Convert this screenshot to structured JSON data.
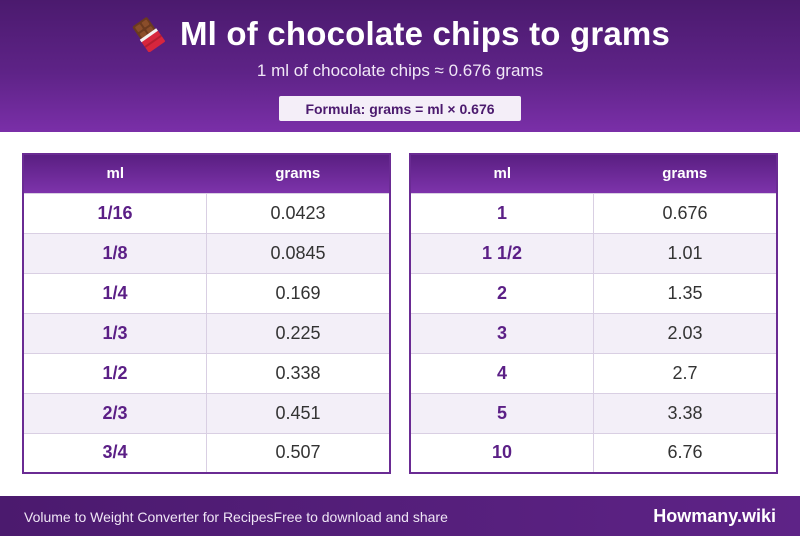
{
  "header": {
    "title_icon": "chocolate-bar-icon",
    "title": "Ml of chocolate chips to grams",
    "subtitle": "1 ml of chocolate chips ≈ 0.676 grams",
    "formula": "Formula: grams = ml × 0.676"
  },
  "colors": {
    "brand_purple": "#5e2387",
    "row_alt": "#f3eff8",
    "value_purple": "#5b1f86"
  },
  "tables": [
    {
      "columns": [
        "ml",
        "grams"
      ],
      "rows": [
        [
          "1/16",
          "0.0423"
        ],
        [
          "1/8",
          "0.0845"
        ],
        [
          "1/4",
          "0.169"
        ],
        [
          "1/3",
          "0.225"
        ],
        [
          "1/2",
          "0.338"
        ],
        [
          "2/3",
          "0.451"
        ],
        [
          "3/4",
          "0.507"
        ]
      ]
    },
    {
      "columns": [
        "ml",
        "grams"
      ],
      "rows": [
        [
          "1",
          "0.676"
        ],
        [
          "1 1/2",
          "1.01"
        ],
        [
          "2",
          "1.35"
        ],
        [
          "3",
          "2.03"
        ],
        [
          "4",
          "2.7"
        ],
        [
          "5",
          "3.38"
        ],
        [
          "10",
          "6.76"
        ]
      ]
    }
  ],
  "footer": {
    "left_text": "Volume to Weight Converter for RecipesFree to download and share",
    "brand": "Howmany.wiki"
  }
}
